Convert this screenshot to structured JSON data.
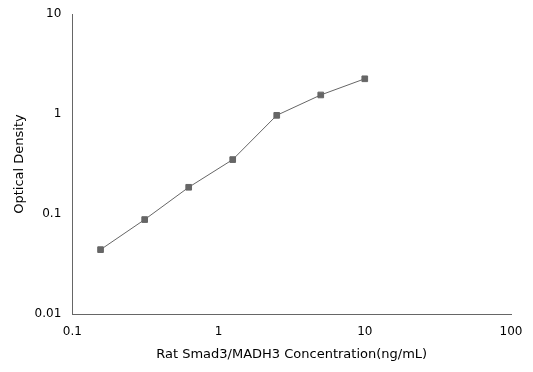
{
  "chart_data": {
    "type": "line",
    "x": [
      0.156,
      0.3125,
      0.625,
      1.25,
      2.5,
      5.0,
      10.0
    ],
    "values": [
      0.044,
      0.088,
      0.185,
      0.35,
      0.97,
      1.55,
      2.25
    ],
    "xlabel": "Rat Smad3/MADH3 Concentration(ng/mL)",
    "ylabel": "Optical Density",
    "xlim": [
      0.1,
      100
    ],
    "ylim": [
      0.01,
      10
    ],
    "xticks": [
      0.1,
      1,
      10,
      100
    ],
    "yticks": [
      0.01,
      0.1,
      1,
      10
    ],
    "log": true,
    "grid": false,
    "color": "#666666",
    "marker": "square"
  }
}
